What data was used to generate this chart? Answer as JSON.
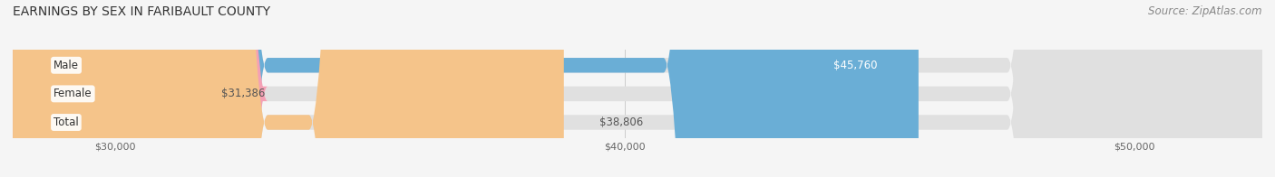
{
  "title": "EARNINGS BY SEX IN FARIBAULT COUNTY",
  "source": "Source: ZipAtlas.com",
  "categories": [
    "Male",
    "Female",
    "Total"
  ],
  "values": [
    45760,
    31386,
    38806
  ],
  "bar_colors": [
    "#6aaed6",
    "#f4a0b5",
    "#f5c48a"
  ],
  "x_min": 28000,
  "x_max": 52500,
  "x_ticks": [
    30000,
    40000,
    50000
  ],
  "x_tick_labels": [
    "$30,000",
    "$40,000",
    "$50,000"
  ],
  "bar_height": 0.52,
  "background_color": "#f5f5f5",
  "bar_background_color": "#e0e0e0",
  "title_fontsize": 10,
  "source_fontsize": 8.5,
  "label_fontsize": 8.5,
  "category_fontsize": 8.5,
  "tick_fontsize": 8
}
